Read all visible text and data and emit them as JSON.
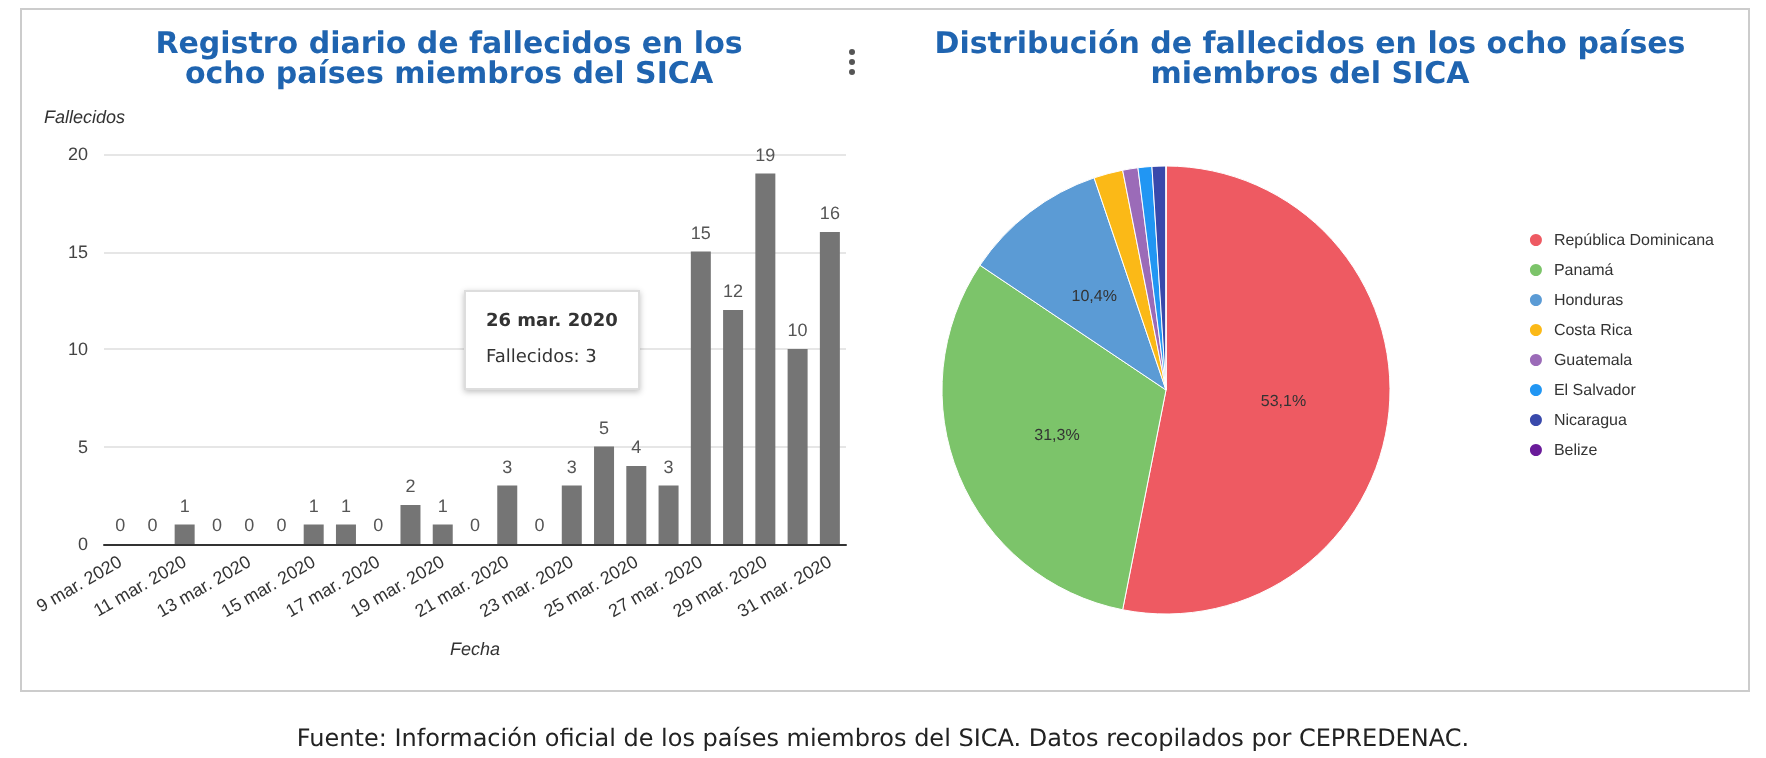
{
  "chart_data": [
    {
      "type": "bar",
      "title": "Registro diario de fallecidos en los ocho países miembros del SICA",
      "xlabel": "Fecha",
      "ylabel": "Fallecidos",
      "categories": [
        "9 mar. 2020",
        null,
        "11 mar. 2020",
        null,
        "13 mar. 2020",
        null,
        "15 mar. 2020",
        null,
        "17 mar. 2020",
        null,
        "19 mar. 2020",
        null,
        "21 mar. 2020",
        null,
        "23 mar. 2020",
        null,
        "25 mar. 2020",
        null,
        "27 mar. 2020",
        null,
        "29 mar. 2020",
        null,
        "31 mar. 2020"
      ],
      "values": [
        0,
        0,
        1,
        0,
        0,
        0,
        1,
        1,
        0,
        2,
        1,
        0,
        3,
        0,
        3,
        5,
        4,
        3,
        15,
        12,
        19,
        10,
        16
      ],
      "color": "#757575",
      "ylim": [
        0,
        20
      ],
      "yticks": [
        0,
        5,
        10,
        15,
        20
      ],
      "grid": "y",
      "data_labels": true,
      "legend": false,
      "annotations": [
        "26 mar. 2020",
        "Fallecidos: 3",
        "Fuente: Información oficial de los países miembros del SICA. Datos recopilados por CEPREDENAC."
      ]
    },
    {
      "type": "pie",
      "title": "Distribución de fallecidos en los ocho países miembros del SICA",
      "categories": [
        "República Dominicana",
        "Panamá",
        "Honduras",
        "Costa Rica",
        "Guatemala",
        "El Salvador",
        "Nicaragua",
        "Belize"
      ],
      "values": [
        53.1,
        31.3,
        10.4,
        2.1,
        1.1,
        1.0,
        1.0,
        0
      ],
      "colors": [
        "#ee5a62",
        "#7cc46a",
        "#5b9bd5",
        "#fbb917",
        "#9b6bb8",
        "#2196f3",
        "#3949ab",
        "#6a1b9a"
      ],
      "value_labels": [
        "53,1%",
        "31,3%",
        "10,4%",
        null,
        null,
        null,
        null,
        null
      ],
      "legend": "right"
    }
  ]
}
